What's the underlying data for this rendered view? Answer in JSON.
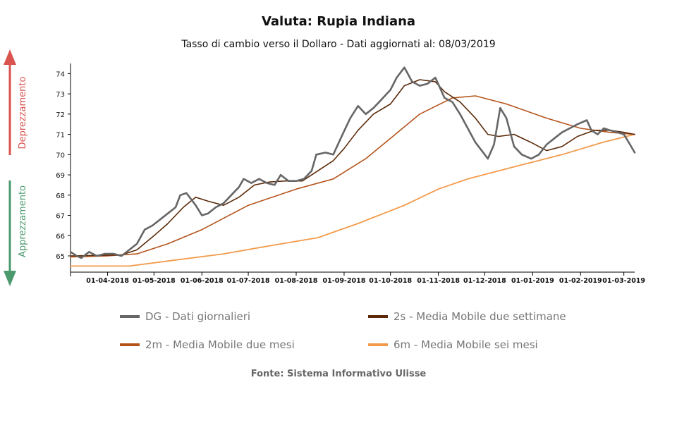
{
  "title": "Valuta: Rupia Indiana",
  "subtitle": "Tasso di cambio verso il Dollaro - Dati aggiornati al: 08/03/2019",
  "source": "Fonte: Sistema Informativo Ulisse",
  "side_labels": {
    "up": "Deprezzamento",
    "down": "Apprezzamento",
    "up_color": "#d9534f",
    "down_color": "#4a9a6e"
  },
  "legend": [
    {
      "label": "DG - Dati giornalieri",
      "color": "#666666"
    },
    {
      "label": "2s - Media Mobile due settimane",
      "color": "#5a2a0a"
    },
    {
      "label": "2m - Media Mobile due mesi",
      "color": "#b5531a"
    },
    {
      "label": "6m - Media Mobile sei mesi",
      "color": "#f39a4a"
    }
  ],
  "chart_data": {
    "type": "line",
    "x_ticks": [
      "01-04-2018",
      "01-05-2018",
      "01-06-2018",
      "01-07-2018",
      "01-08-2018",
      "01-09-2018",
      "01-10-2018",
      "01-11-2018",
      "01-12-2018",
      "01-01-2019",
      "01-02-2019",
      "01-03-2019"
    ],
    "y_ticks": [
      65,
      66,
      67,
      68,
      69,
      70,
      71,
      72,
      73,
      74
    ],
    "xlim": [
      "2018-03-08",
      "2019-03-08"
    ],
    "ylim": [
      64.2,
      74.5
    ],
    "grid": false,
    "legend_position": "bottom",
    "series": [
      {
        "name": "DG - Dati giornalieri",
        "color": "#666666",
        "width": 2.6,
        "points": [
          [
            "2018-03-08",
            65.2
          ],
          [
            "2018-03-12",
            65.0
          ],
          [
            "2018-03-15",
            64.9
          ],
          [
            "2018-03-20",
            65.2
          ],
          [
            "2018-03-25",
            65.0
          ],
          [
            "2018-03-30",
            65.1
          ],
          [
            "2018-04-05",
            65.1
          ],
          [
            "2018-04-10",
            65.0
          ],
          [
            "2018-04-15",
            65.3
          ],
          [
            "2018-04-20",
            65.6
          ],
          [
            "2018-04-25",
            66.3
          ],
          [
            "2018-04-30",
            66.5
          ],
          [
            "2018-05-05",
            66.8
          ],
          [
            "2018-05-10",
            67.1
          ],
          [
            "2018-05-15",
            67.4
          ],
          [
            "2018-05-18",
            68.0
          ],
          [
            "2018-05-22",
            68.1
          ],
          [
            "2018-05-28",
            67.5
          ],
          [
            "2018-06-01",
            67.0
          ],
          [
            "2018-06-05",
            67.1
          ],
          [
            "2018-06-10",
            67.4
          ],
          [
            "2018-06-15",
            67.6
          ],
          [
            "2018-06-20",
            68.0
          ],
          [
            "2018-06-25",
            68.4
          ],
          [
            "2018-06-28",
            68.8
          ],
          [
            "2018-07-03",
            68.6
          ],
          [
            "2018-07-08",
            68.8
          ],
          [
            "2018-07-13",
            68.6
          ],
          [
            "2018-07-18",
            68.5
          ],
          [
            "2018-07-22",
            69.0
          ],
          [
            "2018-07-27",
            68.7
          ],
          [
            "2018-08-01",
            68.7
          ],
          [
            "2018-08-06",
            68.8
          ],
          [
            "2018-08-11",
            69.2
          ],
          [
            "2018-08-14",
            70.0
          ],
          [
            "2018-08-20",
            70.1
          ],
          [
            "2018-08-25",
            70.0
          ],
          [
            "2018-08-31",
            71.0
          ],
          [
            "2018-09-05",
            71.8
          ],
          [
            "2018-09-10",
            72.4
          ],
          [
            "2018-09-15",
            72.0
          ],
          [
            "2018-09-20",
            72.3
          ],
          [
            "2018-09-25",
            72.7
          ],
          [
            "2018-10-01",
            73.2
          ],
          [
            "2018-10-05",
            73.8
          ],
          [
            "2018-10-10",
            74.3
          ],
          [
            "2018-10-15",
            73.6
          ],
          [
            "2018-10-20",
            73.4
          ],
          [
            "2018-10-25",
            73.5
          ],
          [
            "2018-10-30",
            73.8
          ],
          [
            "2018-11-05",
            72.8
          ],
          [
            "2018-11-10",
            72.6
          ],
          [
            "2018-11-15",
            72.0
          ],
          [
            "2018-11-20",
            71.3
          ],
          [
            "2018-11-25",
            70.6
          ],
          [
            "2018-11-30",
            70.1
          ],
          [
            "2018-12-03",
            69.8
          ],
          [
            "2018-12-07",
            70.5
          ],
          [
            "2018-12-11",
            72.3
          ],
          [
            "2018-12-15",
            71.8
          ],
          [
            "2018-12-20",
            70.4
          ],
          [
            "2018-12-25",
            70.0
          ],
          [
            "2018-12-31",
            69.8
          ],
          [
            "2019-01-05",
            70.0
          ],
          [
            "2019-01-10",
            70.5
          ],
          [
            "2019-01-15",
            70.8
          ],
          [
            "2019-01-20",
            71.1
          ],
          [
            "2019-01-25",
            71.3
          ],
          [
            "2019-01-30",
            71.5
          ],
          [
            "2019-02-05",
            71.7
          ],
          [
            "2019-02-08",
            71.2
          ],
          [
            "2019-02-12",
            71.0
          ],
          [
            "2019-02-16",
            71.3
          ],
          [
            "2019-02-20",
            71.2
          ],
          [
            "2019-02-25",
            71.1
          ],
          [
            "2019-03-01",
            71.0
          ],
          [
            "2019-03-05",
            70.5
          ],
          [
            "2019-03-08",
            70.1
          ]
        ]
      },
      {
        "name": "2s - Media Mobile due settimane",
        "color": "#5a2a0a",
        "width": 1.6,
        "points": [
          [
            "2018-03-08",
            65.0
          ],
          [
            "2018-04-10",
            65.05
          ],
          [
            "2018-04-20",
            65.3
          ],
          [
            "2018-05-01",
            66.0
          ],
          [
            "2018-05-10",
            66.6
          ],
          [
            "2018-05-20",
            67.4
          ],
          [
            "2018-05-28",
            67.9
          ],
          [
            "2018-06-05",
            67.7
          ],
          [
            "2018-06-15",
            67.5
          ],
          [
            "2018-06-25",
            67.9
          ],
          [
            "2018-07-05",
            68.5
          ],
          [
            "2018-07-15",
            68.65
          ],
          [
            "2018-07-25",
            68.7
          ],
          [
            "2018-08-05",
            68.7
          ],
          [
            "2018-08-15",
            69.2
          ],
          [
            "2018-08-25",
            69.7
          ],
          [
            "2018-09-01",
            70.3
          ],
          [
            "2018-09-10",
            71.2
          ],
          [
            "2018-09-20",
            72.0
          ],
          [
            "2018-10-01",
            72.5
          ],
          [
            "2018-10-10",
            73.4
          ],
          [
            "2018-10-20",
            73.7
          ],
          [
            "2018-10-30",
            73.6
          ],
          [
            "2018-11-05",
            73.1
          ],
          [
            "2018-11-15",
            72.6
          ],
          [
            "2018-11-25",
            71.8
          ],
          [
            "2018-12-03",
            71.0
          ],
          [
            "2018-12-10",
            70.9
          ],
          [
            "2018-12-20",
            71.0
          ],
          [
            "2018-12-31",
            70.6
          ],
          [
            "2019-01-10",
            70.2
          ],
          [
            "2019-01-20",
            70.4
          ],
          [
            "2019-01-30",
            70.9
          ],
          [
            "2019-02-10",
            71.2
          ],
          [
            "2019-02-20",
            71.2
          ],
          [
            "2019-03-01",
            71.1
          ],
          [
            "2019-03-08",
            71.0
          ]
        ]
      },
      {
        "name": "2m - Media Mobile due mesi",
        "color": "#b5531a",
        "width": 1.6,
        "points": [
          [
            "2018-03-08",
            64.95
          ],
          [
            "2018-04-01",
            65.0
          ],
          [
            "2018-04-20",
            65.1
          ],
          [
            "2018-05-10",
            65.6
          ],
          [
            "2018-06-01",
            66.3
          ],
          [
            "2018-07-01",
            67.5
          ],
          [
            "2018-08-01",
            68.3
          ],
          [
            "2018-08-25",
            68.8
          ],
          [
            "2018-09-15",
            69.8
          ],
          [
            "2018-10-01",
            70.8
          ],
          [
            "2018-10-20",
            72.0
          ],
          [
            "2018-11-10",
            72.8
          ],
          [
            "2018-11-25",
            72.9
          ],
          [
            "2018-12-15",
            72.5
          ],
          [
            "2019-01-10",
            71.8
          ],
          [
            "2019-02-01",
            71.3
          ],
          [
            "2019-02-20",
            71.1
          ],
          [
            "2019-03-08",
            71.0
          ]
        ]
      },
      {
        "name": "6m - Media Mobile sei mesi",
        "color": "#f39a4a",
        "width": 1.8,
        "points": [
          [
            "2018-03-08",
            64.5
          ],
          [
            "2018-04-15",
            64.5
          ],
          [
            "2018-05-15",
            64.8
          ],
          [
            "2018-06-15",
            65.1
          ],
          [
            "2018-07-15",
            65.5
          ],
          [
            "2018-08-15",
            65.9
          ],
          [
            "2018-09-10",
            66.6
          ],
          [
            "2018-10-10",
            67.5
          ],
          [
            "2018-11-01",
            68.3
          ],
          [
            "2018-11-20",
            68.8
          ],
          [
            "2018-12-20",
            69.4
          ],
          [
            "2019-01-20",
            70.0
          ],
          [
            "2019-02-15",
            70.6
          ],
          [
            "2019-03-08",
            71.0
          ]
        ]
      }
    ]
  }
}
